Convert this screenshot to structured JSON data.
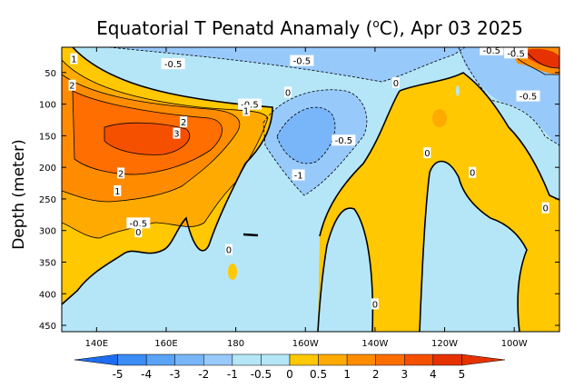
{
  "chart_data": {
    "type": "heatmap",
    "title": "Equatorial T Penatd Anamaly (°C), Apr 03 2025",
    "title_prefix": "Equatorial T Penatd Anamaly (",
    "title_unit_sup": "o",
    "title_suffix": "C), Apr 03 2025",
    "ylabel": "Depth (meter)",
    "xlabel": "",
    "x_range": [
      130,
      273
    ],
    "y_range": [
      460,
      10
    ],
    "x_ticks": [
      {
        "v": 140,
        "label": "140E"
      },
      {
        "v": 160,
        "label": "160E"
      },
      {
        "v": 180,
        "label": "180"
      },
      {
        "v": 200,
        "label": "160W"
      },
      {
        "v": 220,
        "label": "140W"
      },
      {
        "v": 240,
        "label": "120W"
      },
      {
        "v": 260,
        "label": "100W"
      }
    ],
    "y_ticks": [
      50,
      100,
      150,
      200,
      250,
      300,
      350,
      400,
      450
    ],
    "colorbar": {
      "levels": [
        "-5",
        "-4",
        "-3",
        "-2",
        "-1",
        "-0.5",
        "0",
        "0.5",
        "1",
        "2",
        "3",
        "4",
        "5"
      ],
      "colors": [
        "#1e6cf0",
        "#3c8cf5",
        "#5aa3f7",
        "#78b6f9",
        "#98c9fb",
        "#b5e6f8",
        "#b5e6f8",
        "#ffc800",
        "#ffaa00",
        "#ff8c00",
        "#ff6e00",
        "#f55000",
        "#e63200",
        "#e63200"
      ]
    },
    "contour_labels": [
      {
        "text": "1",
        "x": 133.5,
        "y": 28
      },
      {
        "text": "2",
        "x": 133,
        "y": 70
      },
      {
        "text": "-0.5",
        "x": 162,
        "y": 36
      },
      {
        "text": "-0.5",
        "x": 199,
        "y": 31
      },
      {
        "text": "-0.5",
        "x": 260.5,
        "y": 19
      },
      {
        "text": "-0.5",
        "x": 253.5,
        "y": 14
      },
      {
        "text": "-0.5",
        "x": 184,
        "y": 100
      },
      {
        "text": "-0.5",
        "x": 211,
        "y": 157
      },
      {
        "text": "-0.5",
        "x": 264,
        "y": 87
      },
      {
        "text": "-0.5",
        "x": 152,
        "y": 288
      },
      {
        "text": "1",
        "x": 183,
        "y": 110
      },
      {
        "text": "2",
        "x": 165,
        "y": 128
      },
      {
        "text": "3",
        "x": 163,
        "y": 146
      },
      {
        "text": "2",
        "x": 147,
        "y": 209
      },
      {
        "text": "1",
        "x": 146,
        "y": 237
      },
      {
        "text": "-1",
        "x": 198,
        "y": 212
      },
      {
        "text": "0",
        "x": 195,
        "y": 81
      },
      {
        "text": "0",
        "x": 226,
        "y": 66
      },
      {
        "text": "0",
        "x": 235,
        "y": 177
      },
      {
        "text": "0",
        "x": 248,
        "y": 208
      },
      {
        "text": "0",
        "x": 269,
        "y": 264
      },
      {
        "text": "0",
        "x": 220,
        "y": 416
      },
      {
        "text": "0",
        "x": 178,
        "y": 330
      },
      {
        "text": "0",
        "x": 152,
        "y": 302
      }
    ]
  }
}
